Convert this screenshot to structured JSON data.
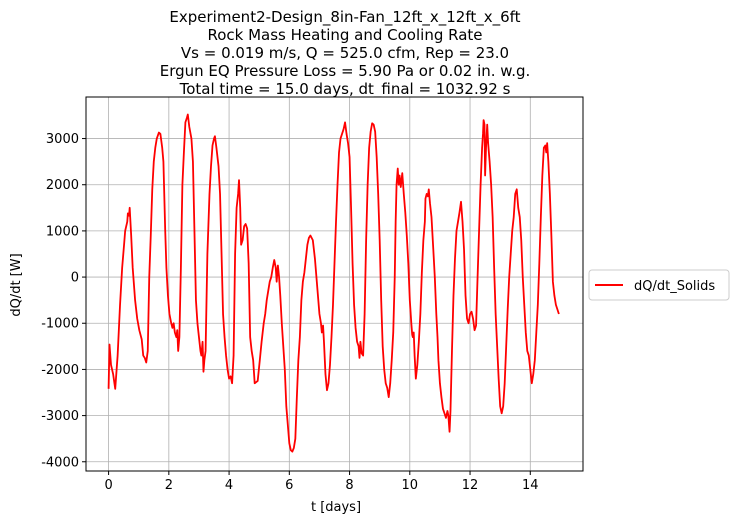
{
  "chart_data": {
    "type": "line",
    "title_lines": [
      "Experiment2-Design_8in-Fan_12ft_x_12ft_x_6ft",
      "Rock Mass Heating and Cooling Rate",
      "Vs = 0.019 m/s, Q = 525.0 cfm, Rep = 23.0",
      "Ergun EQ Pressure Loss = 5.90 Pa or 0.02 in. w.g.",
      "Total time = 15.0 days, dt_final = 1032.92 s"
    ],
    "xlabel": "t [days]",
    "ylabel": "dQ/dt [W]",
    "xlim": [
      -0.75,
      15.75
    ],
    "ylim": [
      -4200,
      3900
    ],
    "xticks": [
      0,
      2,
      4,
      6,
      8,
      10,
      12,
      14
    ],
    "yticks": [
      -4000,
      -3000,
      -2000,
      -1000,
      0,
      1000,
      2000,
      3000
    ],
    "grid": true,
    "legend_position": "outside-right",
    "series": [
      {
        "name": "dQ/dt_Solids",
        "color": "#ff0000",
        "points": [
          [
            0.0,
            -2420
          ],
          [
            0.03,
            -1460
          ],
          [
            0.08,
            -1900
          ],
          [
            0.15,
            -2100
          ],
          [
            0.22,
            -2420
          ],
          [
            0.3,
            -1700
          ],
          [
            0.38,
            -600
          ],
          [
            0.45,
            200
          ],
          [
            0.52,
            750
          ],
          [
            0.55,
            1000
          ],
          [
            0.62,
            1200
          ],
          [
            0.64,
            1380
          ],
          [
            0.68,
            1330
          ],
          [
            0.7,
            1500
          ],
          [
            0.75,
            900
          ],
          [
            0.8,
            200
          ],
          [
            0.88,
            -500
          ],
          [
            0.95,
            -900
          ],
          [
            1.02,
            -1150
          ],
          [
            1.1,
            -1350
          ],
          [
            1.15,
            -1700
          ],
          [
            1.2,
            -1750
          ],
          [
            1.25,
            -1850
          ],
          [
            1.3,
            -1600
          ],
          [
            1.35,
            0
          ],
          [
            1.4,
            900
          ],
          [
            1.45,
            1900
          ],
          [
            1.5,
            2500
          ],
          [
            1.55,
            2800
          ],
          [
            1.6,
            3000
          ],
          [
            1.67,
            3130
          ],
          [
            1.72,
            3100
          ],
          [
            1.78,
            2800
          ],
          [
            1.82,
            2500
          ],
          [
            1.88,
            1000
          ],
          [
            1.92,
            200
          ],
          [
            1.97,
            -400
          ],
          [
            2.02,
            -800
          ],
          [
            2.08,
            -1000
          ],
          [
            2.12,
            -1100
          ],
          [
            2.16,
            -1000
          ],
          [
            2.2,
            -1200
          ],
          [
            2.25,
            -1300
          ],
          [
            2.28,
            -1150
          ],
          [
            2.31,
            -1600
          ],
          [
            2.35,
            -1300
          ],
          [
            2.4,
            200
          ],
          [
            2.45,
            2000
          ],
          [
            2.5,
            2700
          ],
          [
            2.55,
            3350
          ],
          [
            2.6,
            3450
          ],
          [
            2.63,
            3520
          ],
          [
            2.68,
            3250
          ],
          [
            2.75,
            3000
          ],
          [
            2.8,
            2500
          ],
          [
            2.85,
            1000
          ],
          [
            2.9,
            -500
          ],
          [
            2.95,
            -1000
          ],
          [
            3.0,
            -1300
          ],
          [
            3.05,
            -1600
          ],
          [
            3.08,
            -1700
          ],
          [
            3.12,
            -1400
          ],
          [
            3.15,
            -2050
          ],
          [
            3.18,
            -1800
          ],
          [
            3.22,
            -1600
          ],
          [
            3.28,
            500
          ],
          [
            3.35,
            1800
          ],
          [
            3.4,
            2400
          ],
          [
            3.45,
            2850
          ],
          [
            3.5,
            3000
          ],
          [
            3.53,
            3050
          ],
          [
            3.58,
            2800
          ],
          [
            3.65,
            2400
          ],
          [
            3.7,
            1800
          ],
          [
            3.75,
            500
          ],
          [
            3.8,
            -800
          ],
          [
            3.85,
            -1300
          ],
          [
            3.9,
            -1700
          ],
          [
            3.95,
            -2000
          ],
          [
            4.0,
            -2200
          ],
          [
            4.05,
            -2150
          ],
          [
            4.1,
            -2300
          ],
          [
            4.15,
            -1700
          ],
          [
            4.2,
            500
          ],
          [
            4.25,
            1500
          ],
          [
            4.3,
            1800
          ],
          [
            4.33,
            2100
          ],
          [
            4.37,
            1500
          ],
          [
            4.4,
            700
          ],
          [
            4.45,
            800
          ],
          [
            4.5,
            1100
          ],
          [
            4.55,
            1150
          ],
          [
            4.6,
            1050
          ],
          [
            4.65,
            300
          ],
          [
            4.7,
            -1300
          ],
          [
            4.75,
            -1600
          ],
          [
            4.8,
            -1800
          ],
          [
            4.85,
            -2300
          ],
          [
            4.95,
            -2250
          ],
          [
            5.02,
            -1800
          ],
          [
            5.08,
            -1400
          ],
          [
            5.15,
            -1000
          ],
          [
            5.2,
            -800
          ],
          [
            5.25,
            -500
          ],
          [
            5.3,
            -300
          ],
          [
            5.35,
            -100
          ],
          [
            5.4,
            0
          ],
          [
            5.45,
            200
          ],
          [
            5.5,
            370
          ],
          [
            5.55,
            200
          ],
          [
            5.58,
            -100
          ],
          [
            5.62,
            250
          ],
          [
            5.66,
            0
          ],
          [
            5.7,
            -400
          ],
          [
            5.75,
            -1000
          ],
          [
            5.8,
            -1500
          ],
          [
            5.85,
            -2000
          ],
          [
            5.9,
            -2800
          ],
          [
            5.95,
            -3200
          ],
          [
            6.0,
            -3600
          ],
          [
            6.05,
            -3750
          ],
          [
            6.1,
            -3780
          ],
          [
            6.15,
            -3700
          ],
          [
            6.2,
            -3500
          ],
          [
            6.25,
            -2600
          ],
          [
            6.3,
            -1800
          ],
          [
            6.35,
            -1300
          ],
          [
            6.4,
            -500
          ],
          [
            6.45,
            -100
          ],
          [
            6.5,
            100
          ],
          [
            6.55,
            400
          ],
          [
            6.6,
            700
          ],
          [
            6.65,
            850
          ],
          [
            6.7,
            900
          ],
          [
            6.78,
            800
          ],
          [
            6.85,
            400
          ],
          [
            6.9,
            0
          ],
          [
            6.95,
            -400
          ],
          [
            7.0,
            -800
          ],
          [
            7.05,
            -1000
          ],
          [
            7.08,
            -1200
          ],
          [
            7.12,
            -1050
          ],
          [
            7.15,
            -1400
          ],
          [
            7.2,
            -2100
          ],
          [
            7.25,
            -2450
          ],
          [
            7.3,
            -2300
          ],
          [
            7.35,
            -1900
          ],
          [
            7.4,
            -1300
          ],
          [
            7.45,
            -600
          ],
          [
            7.5,
            300
          ],
          [
            7.55,
            1200
          ],
          [
            7.6,
            2000
          ],
          [
            7.65,
            2700
          ],
          [
            7.7,
            3000
          ],
          [
            7.75,
            3100
          ],
          [
            7.8,
            3200
          ],
          [
            7.85,
            3350
          ],
          [
            7.9,
            3100
          ],
          [
            7.95,
            2900
          ],
          [
            8.0,
            2600
          ],
          [
            8.05,
            1500
          ],
          [
            8.1,
            300
          ],
          [
            8.15,
            -600
          ],
          [
            8.2,
            -1100
          ],
          [
            8.25,
            -1400
          ],
          [
            8.3,
            -1500
          ],
          [
            8.33,
            -1750
          ],
          [
            8.36,
            -1400
          ],
          [
            8.4,
            -1650
          ],
          [
            8.45,
            -1700
          ],
          [
            8.5,
            -800
          ],
          [
            8.55,
            800
          ],
          [
            8.6,
            2000
          ],
          [
            8.65,
            2800
          ],
          [
            8.7,
            3150
          ],
          [
            8.75,
            3330
          ],
          [
            8.8,
            3300
          ],
          [
            8.85,
            3150
          ],
          [
            8.9,
            2600
          ],
          [
            8.95,
            1800
          ],
          [
            9.0,
            800
          ],
          [
            9.05,
            -500
          ],
          [
            9.1,
            -1500
          ],
          [
            9.15,
            -2000
          ],
          [
            9.2,
            -2300
          ],
          [
            9.25,
            -2400
          ],
          [
            9.3,
            -2600
          ],
          [
            9.35,
            -2300
          ],
          [
            9.4,
            -1800
          ],
          [
            9.45,
            -1200
          ],
          [
            9.5,
            0
          ],
          [
            9.53,
            1200
          ],
          [
            9.56,
            2000
          ],
          [
            9.6,
            2350
          ],
          [
            9.63,
            2000
          ],
          [
            9.66,
            2200
          ],
          [
            9.7,
            1950
          ],
          [
            9.75,
            2250
          ],
          [
            9.8,
            1800
          ],
          [
            9.85,
            1400
          ],
          [
            9.9,
            900
          ],
          [
            9.95,
            300
          ],
          [
            10.0,
            -500
          ],
          [
            10.05,
            -1000
          ],
          [
            10.08,
            -1250
          ],
          [
            10.1,
            -1300
          ],
          [
            10.13,
            -1200
          ],
          [
            10.16,
            -1700
          ],
          [
            10.2,
            -2200
          ],
          [
            10.25,
            -1900
          ],
          [
            10.3,
            -1400
          ],
          [
            10.35,
            -800
          ],
          [
            10.4,
            100
          ],
          [
            10.45,
            800
          ],
          [
            10.5,
            1200
          ],
          [
            10.52,
            1700
          ],
          [
            10.56,
            1800
          ],
          [
            10.6,
            1750
          ],
          [
            10.63,
            1900
          ],
          [
            10.67,
            1600
          ],
          [
            10.72,
            1300
          ],
          [
            10.78,
            600
          ],
          [
            10.83,
            0
          ],
          [
            10.88,
            -800
          ],
          [
            10.92,
            -1300
          ],
          [
            10.95,
            -1800
          ],
          [
            11.0,
            -2300
          ],
          [
            11.05,
            -2600
          ],
          [
            11.1,
            -2850
          ],
          [
            11.15,
            -2950
          ],
          [
            11.2,
            -3050
          ],
          [
            11.25,
            -2900
          ],
          [
            11.28,
            -3000
          ],
          [
            11.32,
            -3350
          ],
          [
            11.35,
            -2900
          ],
          [
            11.4,
            -1600
          ],
          [
            11.45,
            -400
          ],
          [
            11.5,
            400
          ],
          [
            11.55,
            1000
          ],
          [
            11.6,
            1200
          ],
          [
            11.65,
            1400
          ],
          [
            11.7,
            1630
          ],
          [
            11.75,
            1200
          ],
          [
            11.8,
            600
          ],
          [
            11.85,
            -400
          ],
          [
            11.9,
            -900
          ],
          [
            11.95,
            -1000
          ],
          [
            12.0,
            -800
          ],
          [
            12.05,
            -750
          ],
          [
            12.1,
            -900
          ],
          [
            12.15,
            -1150
          ],
          [
            12.2,
            -1050
          ],
          [
            12.25,
            0
          ],
          [
            12.3,
            1000
          ],
          [
            12.35,
            2000
          ],
          [
            12.4,
            2800
          ],
          [
            12.43,
            3100
          ],
          [
            12.45,
            3400
          ],
          [
            12.48,
            3300
          ],
          [
            12.5,
            2200
          ],
          [
            12.53,
            2800
          ],
          [
            12.57,
            3300
          ],
          [
            12.6,
            2900
          ],
          [
            12.65,
            2500
          ],
          [
            12.7,
            2000
          ],
          [
            12.75,
            1300
          ],
          [
            12.8,
            200
          ],
          [
            12.85,
            -800
          ],
          [
            12.9,
            -1500
          ],
          [
            12.95,
            -2200
          ],
          [
            13.0,
            -2800
          ],
          [
            13.05,
            -2950
          ],
          [
            13.1,
            -2800
          ],
          [
            13.15,
            -2300
          ],
          [
            13.2,
            -1500
          ],
          [
            13.25,
            -700
          ],
          [
            13.3,
            0
          ],
          [
            13.35,
            500
          ],
          [
            13.4,
            1000
          ],
          [
            13.45,
            1300
          ],
          [
            13.5,
            1800
          ],
          [
            13.55,
            1900
          ],
          [
            13.6,
            1500
          ],
          [
            13.65,
            1300
          ],
          [
            13.7,
            800
          ],
          [
            13.75,
            0
          ],
          [
            13.8,
            -600
          ],
          [
            13.85,
            -1200
          ],
          [
            13.9,
            -1600
          ],
          [
            13.95,
            -1700
          ],
          [
            14.0,
            -2000
          ],
          [
            14.05,
            -2300
          ],
          [
            14.1,
            -2100
          ],
          [
            14.15,
            -1800
          ],
          [
            14.2,
            -1200
          ],
          [
            14.25,
            -600
          ],
          [
            14.3,
            300
          ],
          [
            14.35,
            1300
          ],
          [
            14.4,
            2200
          ],
          [
            14.45,
            2800
          ],
          [
            14.5,
            2850
          ],
          [
            14.53,
            2700
          ],
          [
            14.56,
            2900
          ],
          [
            14.6,
            2500
          ],
          [
            14.65,
            1800
          ],
          [
            14.7,
            900
          ],
          [
            14.75,
            -100
          ],
          [
            14.8,
            -400
          ],
          [
            14.85,
            -600
          ],
          [
            14.9,
            -700
          ],
          [
            14.95,
            -800
          ]
        ]
      }
    ]
  }
}
